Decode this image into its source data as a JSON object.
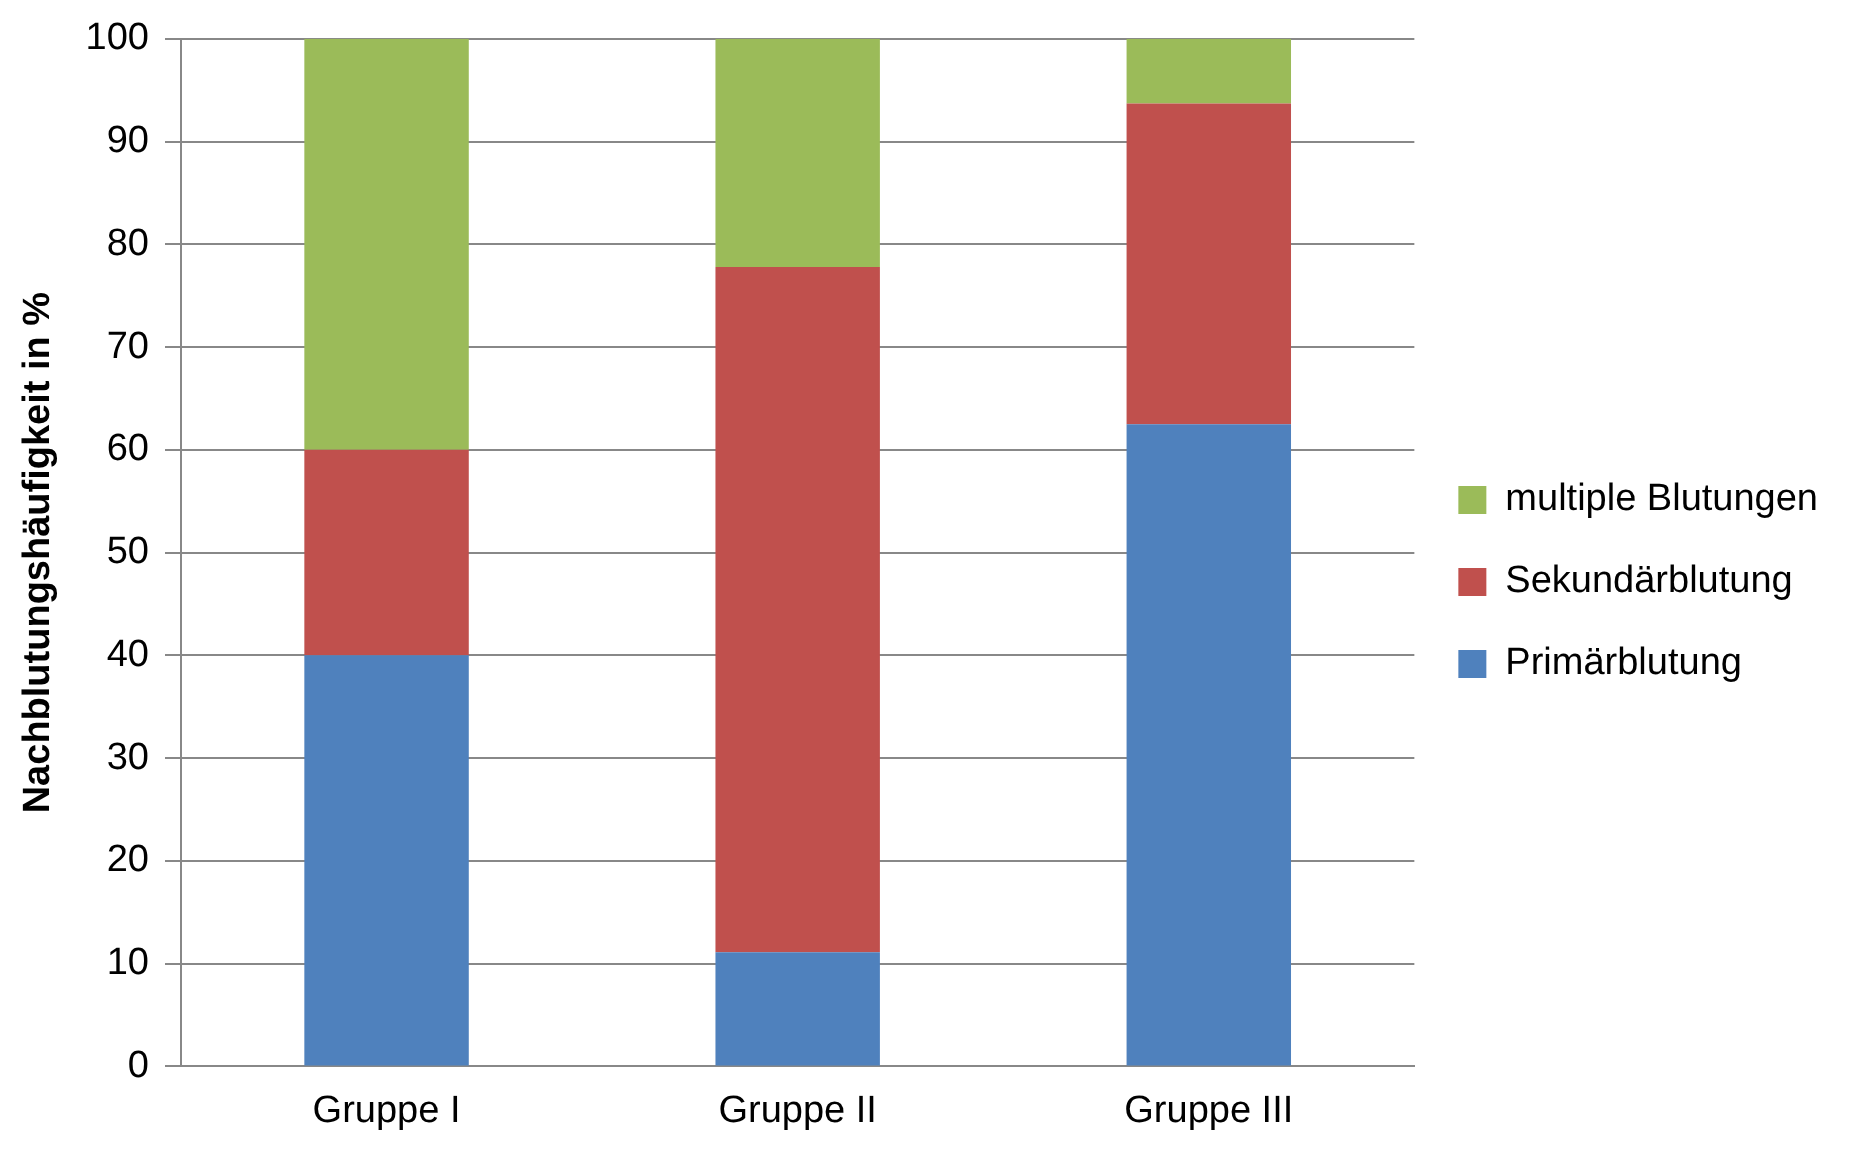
{
  "chart_data": {
    "type": "bar",
    "stacked": true,
    "ylabel": "Nachblutungshäufigkeit in %",
    "categories": [
      "Gruppe I",
      "Gruppe II",
      "Gruppe III"
    ],
    "series": [
      {
        "name": "Primärblutung",
        "color": "#4f81bd",
        "values": [
          40,
          11.1,
          62.5
        ]
      },
      {
        "name": "Sekundärblutung",
        "color": "#c0504d",
        "values": [
          20,
          66.7,
          31.2
        ]
      },
      {
        "name": "multiple Blutungen",
        "color": "#9bbb59",
        "values": [
          40,
          22.2,
          6.3
        ]
      }
    ],
    "ylim": [
      0,
      100
    ],
    "yticks": [
      0,
      10,
      20,
      30,
      40,
      50,
      60,
      70,
      80,
      90,
      100
    ],
    "grid": "y",
    "legend": "right"
  }
}
